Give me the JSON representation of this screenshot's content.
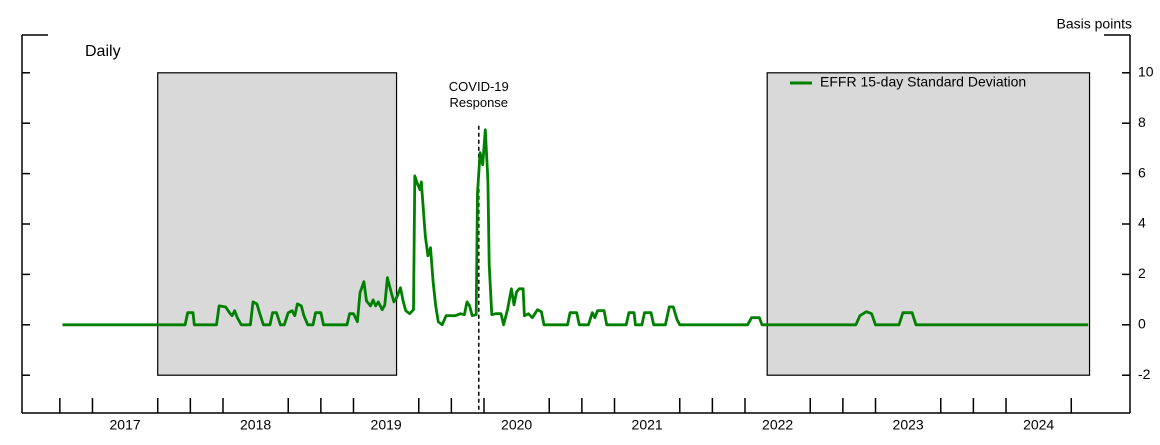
{
  "chart_data": {
    "type": "line",
    "title": "Daily",
    "y_axis_label": "Basis points",
    "legend": "upper right",
    "grid": false,
    "series": [
      {
        "name": "EFFR 15-day Standard Deviation",
        "color": "#008000",
        "x": [
          2017.02,
          2017.96,
          2017.98,
          2018.02,
          2018.03,
          2018.2,
          2018.22,
          2018.27,
          2018.3,
          2018.32,
          2018.34,
          2018.36,
          2018.39,
          2018.46,
          2018.48,
          2018.51,
          2018.53,
          2018.56,
          2018.61,
          2018.63,
          2018.66,
          2018.69,
          2018.72,
          2018.75,
          2018.78,
          2018.8,
          2018.82,
          2018.85,
          2018.87,
          2018.9,
          2018.94,
          2018.96,
          2019.0,
          2019.02,
          2019.2,
          2019.22,
          2019.25,
          2019.28,
          2019.3,
          2019.33,
          2019.35,
          2019.38,
          2019.4,
          2019.42,
          2019.44,
          2019.47,
          2019.49,
          2019.51,
          2019.54,
          2019.56,
          2019.58,
          2019.61,
          2019.63,
          2019.65,
          2019.68,
          2019.71,
          2019.72,
          2019.74,
          2019.76,
          2019.77,
          2019.8,
          2019.82,
          2019.84,
          2019.86,
          2019.88,
          2019.9,
          2019.93,
          2019.96,
          2020.03,
          2020.07,
          2020.1,
          2020.12,
          2020.14,
          2020.16,
          2020.19,
          2020.2,
          2020.22,
          2020.24,
          2020.26,
          2020.28,
          2020.29,
          2020.31,
          2020.34,
          2020.38,
          2020.4,
          2020.43,
          2020.46,
          2020.48,
          2020.5,
          2020.52,
          2020.55,
          2020.56,
          2020.59,
          2020.62,
          2020.66,
          2020.69,
          2020.71,
          2020.89,
          2020.91,
          2020.96,
          2020.98,
          2021.05,
          2021.08,
          2021.1,
          2021.12,
          2021.17,
          2021.19,
          2021.34,
          2021.36,
          2021.4,
          2021.41,
          2021.46,
          2021.48,
          2021.53,
          2021.55,
          2021.64,
          2021.67,
          2021.7,
          2021.73,
          2021.75,
          2022.27,
          2022.3,
          2022.36,
          2022.38,
          2023.1,
          2023.13,
          2023.18,
          2023.22,
          2023.25,
          2023.43,
          2023.46,
          2023.53,
          2023.56,
          2024.88
        ],
        "values": [
          0,
          0,
          0.48,
          0.48,
          0,
          0,
          0.75,
          0.71,
          0.48,
          0.36,
          0.56,
          0.28,
          0,
          0,
          0.91,
          0.83,
          0.48,
          0,
          0,
          0.48,
          0.48,
          0,
          0,
          0.48,
          0.56,
          0.36,
          0.83,
          0.75,
          0.36,
          0,
          0,
          0.48,
          0.48,
          0,
          0,
          0.44,
          0.44,
          0.12,
          1.27,
          1.71,
          0.95,
          0.75,
          0.99,
          0.75,
          0.91,
          0.6,
          0.79,
          1.87,
          1.27,
          0.91,
          1.07,
          1.47,
          0.95,
          0.56,
          0.44,
          0.6,
          5.91,
          5.6,
          5.36,
          5.67,
          3.53,
          2.74,
          3.06,
          1.71,
          0.75,
          0.12,
          0,
          0.36,
          0.36,
          0.44,
          0.4,
          0.91,
          0.75,
          0.36,
          0.4,
          5.24,
          6.83,
          6.35,
          7.74,
          5.75,
          2.38,
          0.4,
          0.44,
          0.44,
          0,
          0.6,
          1.43,
          0.79,
          1.31,
          1.43,
          1.43,
          0.36,
          0.44,
          0.28,
          0.6,
          0.52,
          0,
          0,
          0.48,
          0.48,
          0,
          0,
          0.48,
          0.28,
          0.56,
          0.56,
          0,
          0,
          0.48,
          0.48,
          0,
          0,
          0.48,
          0.48,
          0,
          0,
          0.71,
          0.71,
          0.2,
          0,
          0,
          0.28,
          0.28,
          0,
          0,
          0.36,
          0.52,
          0.44,
          0,
          0,
          0.48,
          0.48,
          0,
          0
        ]
      }
    ],
    "xlim": [
      2016.71,
      2025.2
    ],
    "ylim": [
      -3.5,
      11.5
    ],
    "yticks": [
      -2,
      0,
      2,
      4,
      6,
      8,
      10
    ],
    "xticks": [
      {
        "value": 2017.5,
        "label": "2017"
      },
      {
        "value": 2018.5,
        "label": "2018"
      },
      {
        "value": 2019.5,
        "label": "2019"
      },
      {
        "value": 2020.5,
        "label": "2020"
      },
      {
        "value": 2021.5,
        "label": "2021"
      },
      {
        "value": 2022.5,
        "label": "2022"
      },
      {
        "value": 2023.5,
        "label": "2023"
      },
      {
        "value": 2024.5,
        "label": "2024"
      }
    ],
    "xminorticks": [
      2017,
      2017.25,
      2017.75,
      2018,
      2018.25,
      2018.75,
      2019,
      2019.25,
      2019.75,
      2020,
      2020.25,
      2020.75,
      2021,
      2021.25,
      2021.75,
      2022,
      2022.25,
      2022.75,
      2023,
      2023.25,
      2023.75,
      2024,
      2024.25,
      2024.75
    ],
    "shaded_regions": [
      {
        "x": [
          2017.75,
          2019.58
        ],
        "y": [
          -2,
          10
        ]
      },
      {
        "x": [
          2022.42,
          2024.89
        ],
        "y": [
          -2,
          10
        ]
      }
    ],
    "annotations": [
      {
        "x": 2020.21,
        "y": 7.9,
        "text": [
          "COVID-19",
          "Response"
        ]
      }
    ]
  }
}
